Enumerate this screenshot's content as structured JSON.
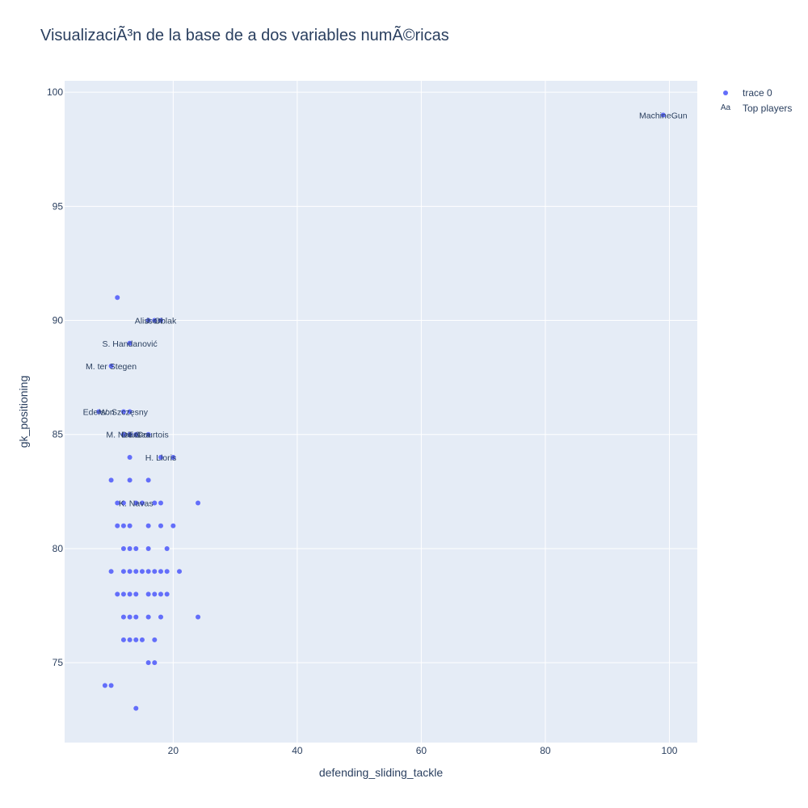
{
  "chart_data": {
    "type": "scatter",
    "title": "VisualizaciÃ³n de la base de a dos variables numÃ©ricas",
    "xlabel": "defending_sliding_tackle",
    "ylabel": "gk_positioning",
    "xlim": [
      2.5,
      104.5
    ],
    "ylim": [
      71.5,
      100.5
    ],
    "x_ticks": [
      20,
      40,
      60,
      80,
      100
    ],
    "y_ticks": [
      75,
      80,
      85,
      90,
      95,
      100
    ],
    "grid": true,
    "legend": "top-right",
    "point_color": "#636efa",
    "series": [
      {
        "name": "trace 0",
        "points": [
          [
            99,
            99
          ],
          [
            11,
            91
          ],
          [
            16,
            90
          ],
          [
            17,
            90
          ],
          [
            18,
            90
          ],
          [
            13,
            89
          ],
          [
            10,
            88
          ],
          [
            8,
            86
          ],
          [
            12,
            86
          ],
          [
            13,
            86
          ],
          [
            12,
            85
          ],
          [
            13,
            85
          ],
          [
            14,
            85
          ],
          [
            16,
            85
          ],
          [
            13,
            84
          ],
          [
            18,
            84
          ],
          [
            20,
            84
          ],
          [
            10,
            83
          ],
          [
            13,
            83
          ],
          [
            16,
            83
          ],
          [
            11,
            82
          ],
          [
            12,
            82
          ],
          [
            14,
            82
          ],
          [
            15,
            82
          ],
          [
            17,
            82
          ],
          [
            18,
            82
          ],
          [
            24,
            82
          ],
          [
            11,
            81
          ],
          [
            12,
            81
          ],
          [
            13,
            81
          ],
          [
            16,
            81
          ],
          [
            18,
            81
          ],
          [
            20,
            81
          ],
          [
            12,
            80
          ],
          [
            13,
            80
          ],
          [
            14,
            80
          ],
          [
            16,
            80
          ],
          [
            19,
            80
          ],
          [
            10,
            79
          ],
          [
            12,
            79
          ],
          [
            13,
            79
          ],
          [
            14,
            79
          ],
          [
            15,
            79
          ],
          [
            16,
            79
          ],
          [
            17,
            79
          ],
          [
            18,
            79
          ],
          [
            19,
            79
          ],
          [
            21,
            79
          ],
          [
            11,
            78
          ],
          [
            12,
            78
          ],
          [
            13,
            78
          ],
          [
            14,
            78
          ],
          [
            16,
            78
          ],
          [
            17,
            78
          ],
          [
            18,
            78
          ],
          [
            19,
            78
          ],
          [
            12,
            77
          ],
          [
            13,
            77
          ],
          [
            14,
            77
          ],
          [
            16,
            77
          ],
          [
            18,
            77
          ],
          [
            24,
            77
          ],
          [
            12,
            76
          ],
          [
            13,
            76
          ],
          [
            14,
            76
          ],
          [
            15,
            76
          ],
          [
            17,
            76
          ],
          [
            16,
            75
          ],
          [
            17,
            75
          ],
          [
            9,
            74
          ],
          [
            10,
            74
          ],
          [
            14,
            73
          ]
        ]
      },
      {
        "name": "Top players",
        "labels": [
          {
            "text": "MachineGun",
            "x": 99,
            "y": 99
          },
          {
            "text": "Alisson",
            "x": 16,
            "y": 90
          },
          {
            "text": "J. Oblak",
            "x": 18,
            "y": 90
          },
          {
            "text": "S. Handanović",
            "x": 13,
            "y": 89
          },
          {
            "text": "M. ter Stegen",
            "x": 10,
            "y": 88
          },
          {
            "text": "Ederson",
            "x": 8,
            "y": 86
          },
          {
            "text": "W. Szczęsny",
            "x": 12,
            "y": 86
          },
          {
            "text": "M. Neuer",
            "x": 12,
            "y": 85
          },
          {
            "text": "De Gea",
            "x": 14,
            "y": 85
          },
          {
            "text": "T. Courtois",
            "x": 16,
            "y": 85
          },
          {
            "text": "H. Lloris",
            "x": 18,
            "y": 84
          },
          {
            "text": "K. Navas",
            "x": 14,
            "y": 82
          }
        ]
      }
    ]
  },
  "legend": {
    "items": [
      {
        "label": "trace 0",
        "marker": "dot-icon"
      },
      {
        "label": "Top players",
        "marker": "text-symbol-icon",
        "symbol": "Aa"
      }
    ]
  }
}
